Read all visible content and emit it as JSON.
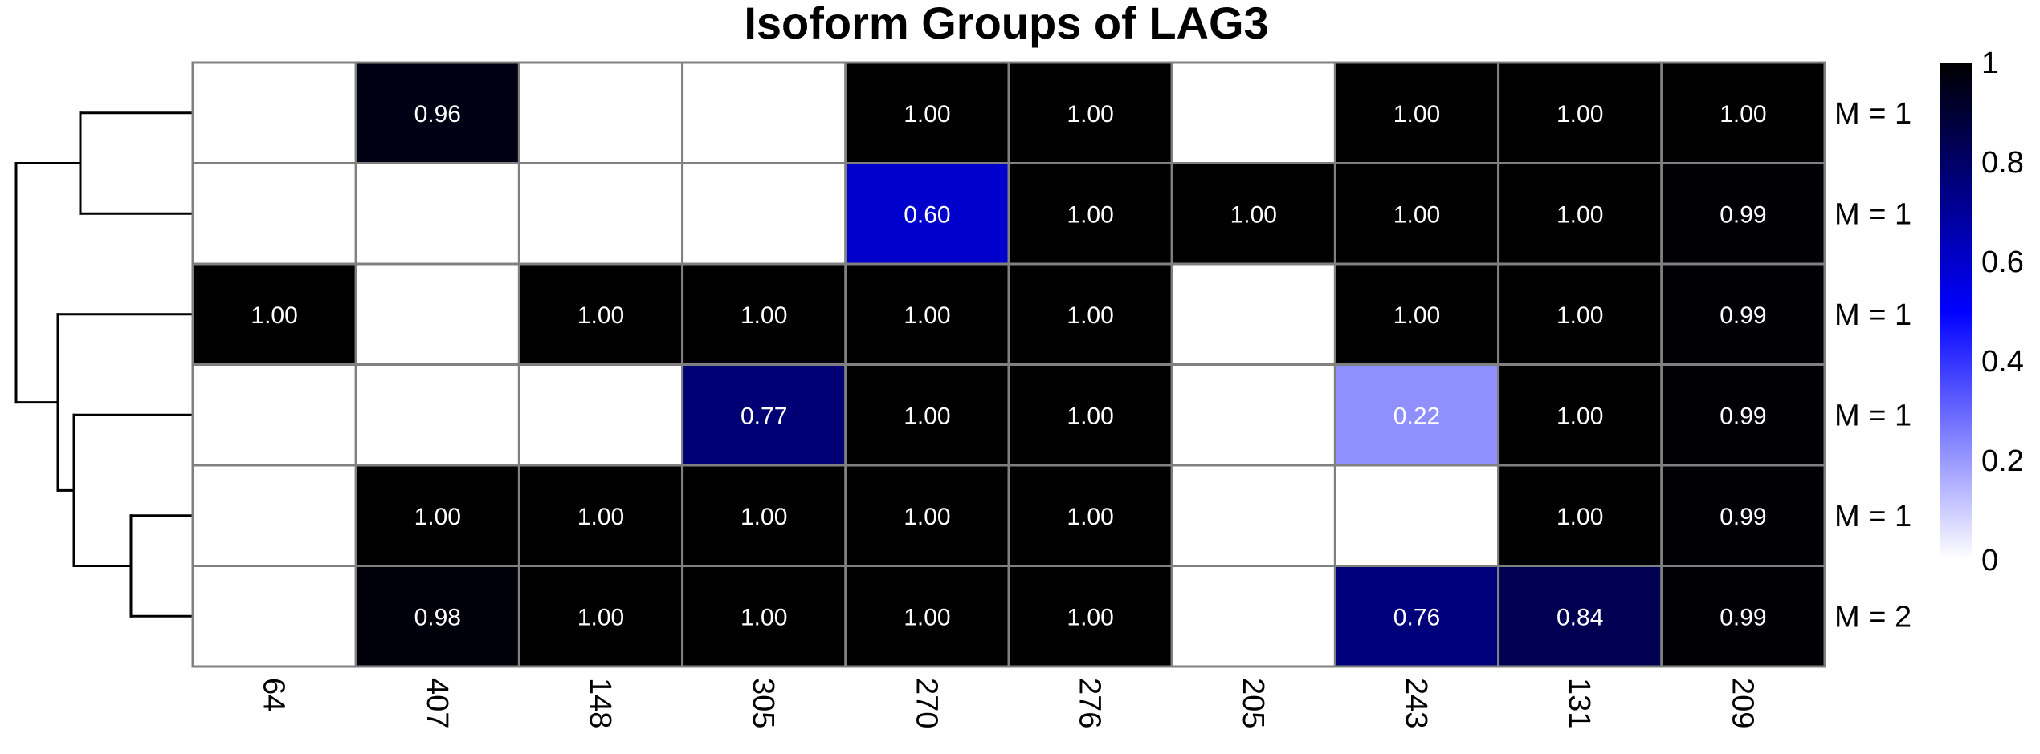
{
  "chart_data": {
    "type": "heatmap",
    "title": "Isoform Groups of LAG3",
    "columns": [
      "64",
      "407",
      "148",
      "305",
      "270",
      "276",
      "205",
      "243",
      "131",
      "209"
    ],
    "rows": [
      "M = 1",
      "M = 1",
      "M = 1",
      "M = 1",
      "M = 1",
      "M = 2"
    ],
    "values": [
      [
        null,
        0.96,
        null,
        null,
        1.0,
        1.0,
        null,
        1.0,
        1.0,
        1.0
      ],
      [
        null,
        null,
        null,
        null,
        0.6,
        1.0,
        1.0,
        1.0,
        1.0,
        0.99
      ],
      [
        1.0,
        null,
        1.0,
        1.0,
        1.0,
        1.0,
        null,
        1.0,
        1.0,
        0.99
      ],
      [
        null,
        null,
        null,
        0.77,
        1.0,
        1.0,
        null,
        0.22,
        1.0,
        0.99
      ],
      [
        null,
        1.0,
        1.0,
        1.0,
        1.0,
        1.0,
        null,
        null,
        1.0,
        0.99
      ],
      [
        null,
        0.98,
        1.0,
        1.0,
        1.0,
        1.0,
        null,
        0.76,
        0.84,
        0.99
      ]
    ],
    "labels": [
      [
        "",
        "0.96",
        "",
        "",
        "1.00",
        "1.00",
        "",
        "1.00",
        "1.00",
        "1.00"
      ],
      [
        "",
        "",
        "",
        "",
        "0.60",
        "1.00",
        "1.00",
        "1.00",
        "1.00",
        "0.99"
      ],
      [
        "1.00",
        "",
        "1.00",
        "1.00",
        "1.00",
        "1.00",
        "",
        "1.00",
        "1.00",
        "0.99"
      ],
      [
        "",
        "",
        "",
        "0.77",
        "1.00",
        "1.00",
        "",
        "0.22",
        "1.00",
        "0.99"
      ],
      [
        "",
        "1.00",
        "1.00",
        "1.00",
        "1.00",
        "1.00",
        "",
        "",
        "1.00",
        "0.99"
      ],
      [
        "",
        "0.98",
        "1.00",
        "1.00",
        "1.00",
        "1.00",
        "",
        "0.76",
        "0.84",
        "0.99"
      ]
    ],
    "color_scale": {
      "range": [
        0,
        1
      ],
      "ticks": [
        "0",
        "0.2",
        "0.4",
        "0.6",
        "0.8",
        "1"
      ],
      "colors": [
        "#ffffff",
        "#0000ff",
        "#000000"
      ],
      "legend_placement": "right"
    },
    "dendrogram": {
      "placement": "left",
      "structure": [
        [
          [
            0,
            1
          ],
          [
            2,
            [
              3,
              [
                4,
                5
              ]
            ]
          ]
        ]
      ]
    },
    "cell_border_color": "#808080",
    "label_text_color": "#ffffff"
  }
}
